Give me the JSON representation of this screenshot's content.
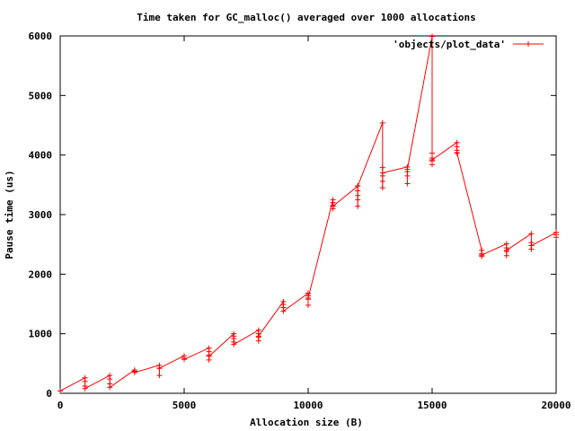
{
  "chart_data": {
    "type": "scatter",
    "title": "Time taken for GC_malloc() averaged over 1000 allocations",
    "xlabel": "Allocation size (B)",
    "ylabel": "Pause time (us)",
    "xlim": [
      0,
      20000
    ],
    "ylim": [
      0,
      6000
    ],
    "xticks": [
      0,
      5000,
      10000,
      15000,
      20000
    ],
    "yticks": [
      0,
      1000,
      2000,
      3000,
      4000,
      5000,
      6000
    ],
    "xtick_labels": [
      "0",
      "5000",
      "10000",
      "15000",
      "20000"
    ],
    "ytick_labels": [
      "0",
      "1000",
      "2000",
      "3000",
      "4000",
      "5000",
      "6000"
    ],
    "grid": false,
    "legend_position": "top-right",
    "colors": {
      "series": "#ff0000",
      "axes": "#000000",
      "background": "#ffffff"
    },
    "series": [
      {
        "name": "'objects/plot_data'",
        "marker": "+",
        "style": "linespoints",
        "points": [
          [
            0,
            40
          ],
          [
            1000,
            260
          ],
          [
            1000,
            200
          ],
          [
            1000,
            120
          ],
          [
            1000,
            80
          ],
          [
            2000,
            300
          ],
          [
            2000,
            240
          ],
          [
            2000,
            160
          ],
          [
            2000,
            100
          ],
          [
            3000,
            390
          ],
          [
            3000,
            370
          ],
          [
            3000,
            350
          ],
          [
            4000,
            470
          ],
          [
            4000,
            420
          ],
          [
            4000,
            300
          ],
          [
            4000,
            420
          ],
          [
            5000,
            630
          ],
          [
            5000,
            590
          ],
          [
            5000,
            570
          ],
          [
            6000,
            760
          ],
          [
            6000,
            700
          ],
          [
            6000,
            640
          ],
          [
            6000,
            560
          ],
          [
            6000,
            620
          ],
          [
            7000,
            1000
          ],
          [
            7000,
            960
          ],
          [
            7000,
            920
          ],
          [
            7000,
            860
          ],
          [
            7000,
            820
          ],
          [
            8000,
            1060
          ],
          [
            8000,
            1000
          ],
          [
            8000,
            940
          ],
          [
            8000,
            880
          ],
          [
            8000,
            960
          ],
          [
            9000,
            1540
          ],
          [
            9000,
            1490
          ],
          [
            9000,
            1440
          ],
          [
            9000,
            1380
          ],
          [
            10000,
            1680
          ],
          [
            10000,
            1640
          ],
          [
            10000,
            1580
          ],
          [
            10000,
            1480
          ],
          [
            10000,
            1600
          ],
          [
            11000,
            3250
          ],
          [
            11000,
            3200
          ],
          [
            11000,
            3150
          ],
          [
            11000,
            3100
          ],
          [
            11000,
            3140
          ],
          [
            12000,
            3480
          ],
          [
            12000,
            3400
          ],
          [
            12000,
            3320
          ],
          [
            12000,
            3250
          ],
          [
            12000,
            3140
          ],
          [
            12000,
            3480
          ],
          [
            13000,
            4540
          ],
          [
            13000,
            3790
          ],
          [
            13000,
            3650
          ],
          [
            13000,
            3560
          ],
          [
            13000,
            3450
          ],
          [
            13000,
            3700
          ],
          [
            14000,
            3800
          ],
          [
            14000,
            3720
          ],
          [
            14000,
            3650
          ],
          [
            14000,
            3520
          ],
          [
            14000,
            3760
          ],
          [
            15000,
            5990
          ],
          [
            15000,
            4030
          ],
          [
            15000,
            3950
          ],
          [
            15000,
            3900
          ],
          [
            15000,
            3840
          ],
          [
            15000,
            3920
          ],
          [
            16000,
            4210
          ],
          [
            16000,
            4140
          ],
          [
            16000,
            4080
          ],
          [
            16000,
            4030
          ],
          [
            16000,
            4040
          ],
          [
            17000,
            2400
          ],
          [
            17000,
            2340
          ],
          [
            17000,
            2300
          ],
          [
            17000,
            2320
          ],
          [
            18000,
            2510
          ],
          [
            18000,
            2440
          ],
          [
            18000,
            2380
          ],
          [
            18000,
            2310
          ],
          [
            18000,
            2400
          ],
          [
            19000,
            2680
          ],
          [
            19000,
            2530
          ],
          [
            19000,
            2480
          ],
          [
            19000,
            2420
          ],
          [
            19000,
            2480
          ],
          [
            20000,
            2700
          ],
          [
            20000,
            2660
          ],
          [
            20000,
            2620
          ],
          [
            20000,
            2700
          ]
        ]
      }
    ]
  }
}
